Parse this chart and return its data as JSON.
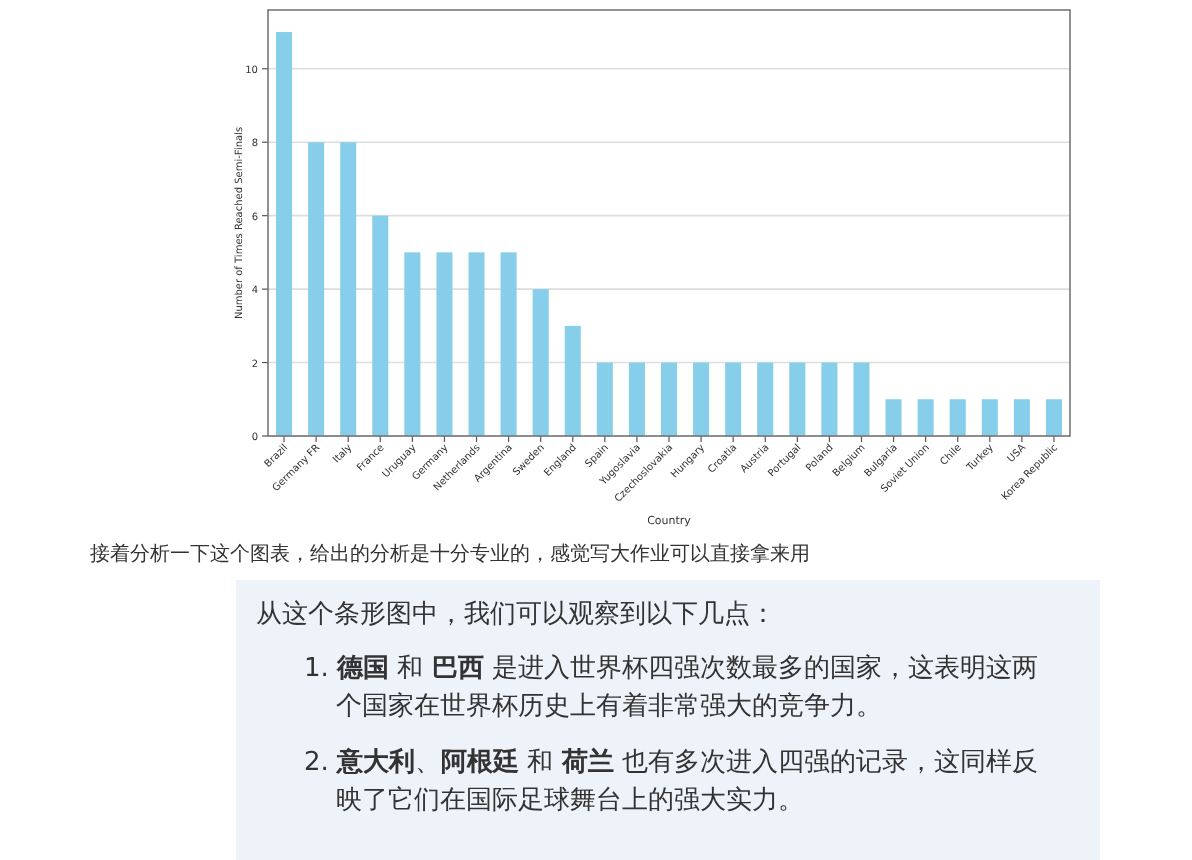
{
  "chart_data": {
    "type": "bar",
    "xlabel": "Country",
    "ylabel": "Number of Times Reached Semi-Finals",
    "categories": [
      "Brazil",
      "Germany FR",
      "Italy",
      "France",
      "Uruguay",
      "Germany",
      "Netherlands",
      "Argentina",
      "Sweden",
      "England",
      "Spain",
      "Yugoslavia",
      "Czechoslovakia",
      "Hungary",
      "Croatia",
      "Austria",
      "Portugal",
      "Poland",
      "Belgium",
      "Bulgaria",
      "Soviet Union",
      "Chile",
      "Turkey",
      "USA",
      "Korea Republic"
    ],
    "values": [
      11,
      8,
      8,
      6,
      5,
      5,
      5,
      5,
      4,
      3,
      2,
      2,
      2,
      2,
      2,
      2,
      2,
      2,
      2,
      1,
      1,
      1,
      1,
      1,
      1
    ],
    "color": "#87ceeb",
    "ylim": [
      0,
      11.6
    ],
    "yticks": [
      0,
      2,
      4,
      6,
      8,
      10
    ],
    "grid": "y",
    "annotations": [
      "接着分析一下这个图表，给出的分析是十分专业的，感觉写大作业可以直接拿来用",
      "从这个条形图中，我们可以观察到以下几点：",
      "1. **德国** 和 **巴西** 是进入世界杯四强次数最多的国家，这表明这两个国家在世界杯历史上有着非常强大的竞争力。",
      "2. **意大利**、**阿根廷** 和 **荷兰** 也有多次进入四强的记录，这同样反映了它们在国际足球舞台上的强大实力。"
    ]
  }
}
